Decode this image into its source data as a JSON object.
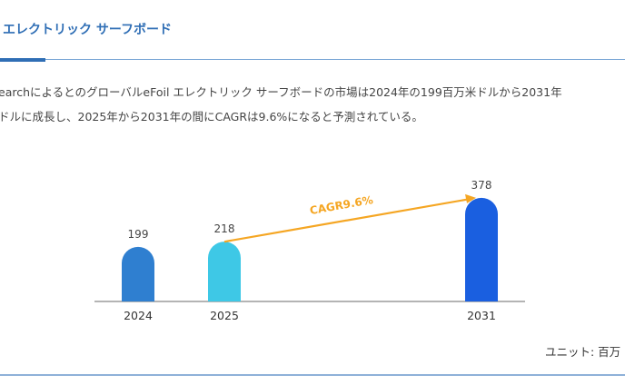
{
  "header": {
    "title": "エレクトリック サーフボード"
  },
  "description": {
    "line1": "earchによるとのグローバルeFoil エレクトリック サーフボードの市場は2024年の199百万米ドルから2031年",
    "line2": "ドルに成長し、2025年から2031年の間にCAGRは9.6%になると予測されている。"
  },
  "unit_label": "ユニット: 百万",
  "chart_data": {
    "type": "bar",
    "categories": [
      "2024",
      "2025",
      "2031"
    ],
    "values": [
      199,
      218,
      378
    ],
    "data_labels": [
      "199",
      "218",
      "378"
    ],
    "colors": [
      "#2f7fd0",
      "#3ec8e6",
      "#1a5fe0"
    ],
    "annotation": {
      "text": "CAGR9.6%",
      "from": "2025",
      "to": "2031",
      "color": "#f5a623"
    },
    "grid": false
  }
}
